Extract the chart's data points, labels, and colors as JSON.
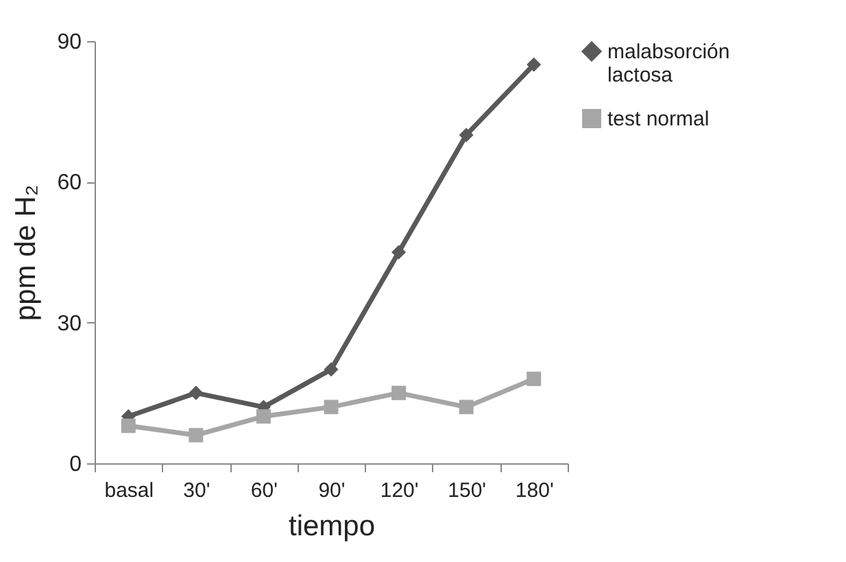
{
  "chart_data": {
    "type": "line",
    "xlabel": "tiempo",
    "ylabel": "ppm de H₂",
    "categories": [
      "basal",
      "30'",
      "60'",
      "90'",
      "120'",
      "150'",
      "180'"
    ],
    "series": [
      {
        "name": "malabsorción lactosa",
        "color": "#595959",
        "marker": "diamond",
        "values": [
          10,
          15,
          12,
          20,
          45,
          70,
          85
        ]
      },
      {
        "name": "test normal",
        "color": "#a6a6a6",
        "marker": "square",
        "values": [
          8,
          6,
          10,
          12,
          15,
          12,
          18
        ]
      }
    ],
    "ylim": [
      0,
      90
    ],
    "yticks": [
      0,
      30,
      60,
      90
    ],
    "grid": false,
    "legend": "right",
    "line_style": "solid"
  }
}
